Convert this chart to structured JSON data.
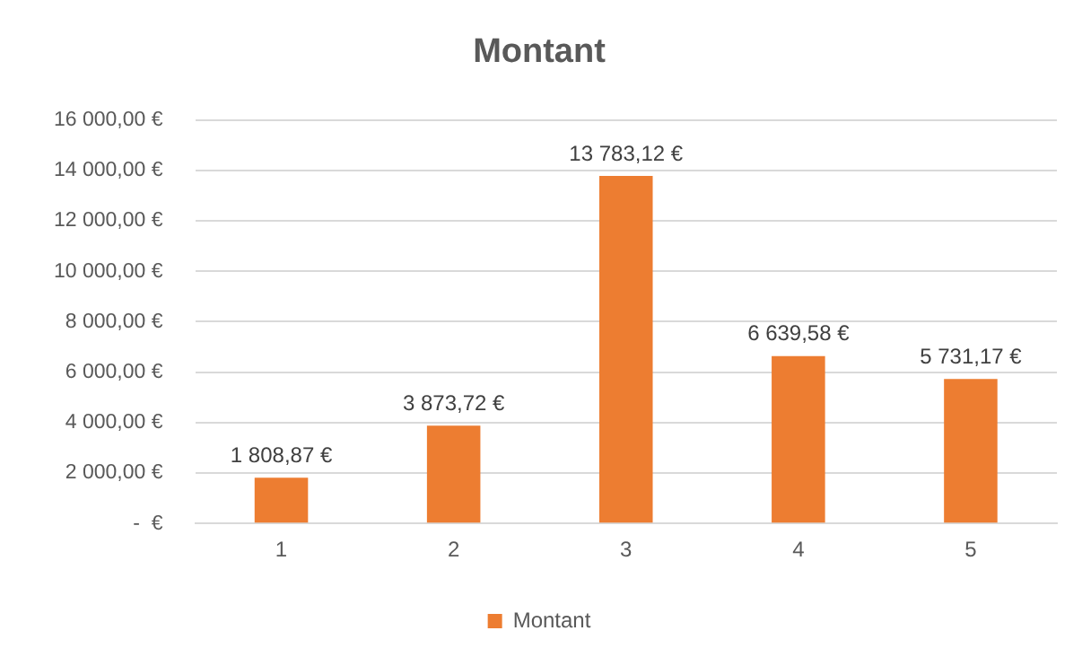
{
  "chart_data": {
    "type": "bar",
    "title": "Montant",
    "categories": [
      "1",
      "2",
      "3",
      "4",
      "5"
    ],
    "series": [
      {
        "name": "Montant",
        "color": "#ed7d31",
        "values": [
          1808.87,
          3873.72,
          13783.12,
          6639.58,
          5731.17
        ],
        "value_labels": [
          "1 808,87 €",
          "3 873,72 €",
          "13 783,12 €",
          "6 639,58 €",
          "5 731,17 €"
        ]
      }
    ],
    "ylim": [
      0,
      16000
    ],
    "yticks": [
      {
        "value": 0,
        "label": "-  €"
      },
      {
        "value": 2000,
        "label": "2 000,00 €"
      },
      {
        "value": 4000,
        "label": "4 000,00 €"
      },
      {
        "value": 6000,
        "label": "6 000,00 €"
      },
      {
        "value": 8000,
        "label": "8 000,00 €"
      },
      {
        "value": 10000,
        "label": "10 000,00 €"
      },
      {
        "value": 12000,
        "label": "12 000,00 €"
      },
      {
        "value": 14000,
        "label": "14 000,00 €"
      },
      {
        "value": 16000,
        "label": "16 000,00 €"
      }
    ],
    "grid": "y",
    "legend": "bottom"
  }
}
